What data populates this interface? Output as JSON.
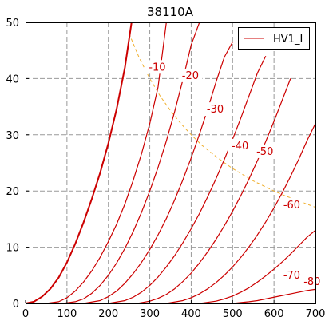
{
  "chart_data": {
    "type": "line",
    "title": "38110A",
    "xlim": [
      0,
      700
    ],
    "ylim": [
      0,
      50
    ],
    "x_ticks": [
      "0",
      "100",
      "200",
      "300",
      "400",
      "500",
      "600",
      "700"
    ],
    "y_ticks": [
      "0",
      "10",
      "20",
      "30",
      "40",
      "50"
    ],
    "grid": true,
    "legend": {
      "position": "top-right",
      "entries": [
        "HV1_I"
      ]
    },
    "colors": {
      "curve": "#cc0000",
      "dissipation": "#f0b030",
      "grid": "#999999"
    },
    "series": [
      {
        "name": "HV1_I",
        "label": "",
        "bold": true,
        "x": [
          0,
          20,
          40,
          60,
          80,
          100,
          120,
          140,
          160,
          180,
          200,
          220,
          240,
          256
        ],
        "y": [
          0,
          0.3,
          1.2,
          2.6,
          4.6,
          7.3,
          10.6,
          14.4,
          18.6,
          23.2,
          28.5,
          34.6,
          42.0,
          50.0
        ]
      },
      {
        "label": "-10",
        "x": [
          50,
          80,
          100,
          120,
          140,
          160,
          180,
          200,
          220,
          240,
          260,
          280,
          300,
          320,
          340
        ],
        "y": [
          0,
          0.3,
          1.0,
          2.2,
          3.8,
          5.8,
          8.2,
          11.0,
          14.1,
          17.7,
          21.9,
          26.6,
          32.0,
          38.5,
          50.0
        ]
      },
      {
        "label": "-20",
        "x": [
          90,
          120,
          140,
          160,
          180,
          200,
          220,
          240,
          260,
          280,
          300,
          320,
          340,
          360,
          380,
          400,
          420
        ],
        "y": [
          0,
          0.3,
          0.8,
          1.8,
          3.2,
          5.0,
          7.2,
          9.8,
          12.8,
          16.2,
          20.0,
          24.2,
          28.9,
          34.1,
          39.8,
          46.0,
          50.0
        ]
      },
      {
        "label": "-30",
        "x": [
          140,
          180,
          200,
          220,
          240,
          260,
          280,
          300,
          320,
          340,
          360,
          380,
          400,
          420,
          440,
          460,
          480,
          500
        ],
        "y": [
          0,
          0.5,
          1.2,
          2.2,
          3.6,
          5.3,
          7.3,
          9.6,
          12.2,
          15.1,
          18.4,
          22.0,
          25.9,
          30.1,
          34.6,
          39.4,
          43.8,
          46.5
        ]
      },
      {
        "label": "-40",
        "x": [
          200,
          240,
          260,
          280,
          300,
          320,
          340,
          360,
          380,
          400,
          420,
          440,
          460,
          480,
          500,
          520,
          540,
          560,
          580
        ],
        "y": [
          0,
          0.5,
          1.1,
          2.0,
          3.2,
          4.7,
          6.5,
          8.5,
          10.8,
          13.3,
          16.0,
          19.0,
          22.2,
          25.6,
          29.2,
          33.0,
          37.0,
          41.0,
          44.0
        ]
      },
      {
        "label": "-50",
        "x": [
          270,
          300,
          320,
          340,
          360,
          380,
          400,
          420,
          440,
          460,
          480,
          500,
          520,
          540,
          560,
          580,
          600,
          620,
          640
        ],
        "y": [
          0,
          0.4,
          0.9,
          1.6,
          2.6,
          3.9,
          5.4,
          7.2,
          9.2,
          11.4,
          13.8,
          16.4,
          19.2,
          22.2,
          25.4,
          28.8,
          32.4,
          36.2,
          40.0
        ]
      },
      {
        "label": "-60",
        "x": [
          340,
          380,
          400,
          420,
          440,
          460,
          480,
          500,
          520,
          540,
          560,
          580,
          600,
          620,
          640,
          660,
          680,
          700
        ],
        "y": [
          0,
          0.5,
          1.0,
          1.7,
          2.6,
          3.7,
          5.0,
          6.5,
          8.2,
          10.1,
          12.2,
          14.5,
          17.0,
          19.7,
          22.6,
          25.7,
          29.0,
          32.0
        ]
      },
      {
        "label": "-70",
        "x": [
          420,
          460,
          480,
          500,
          520,
          540,
          560,
          580,
          600,
          620,
          640,
          660,
          680,
          700
        ],
        "y": [
          0,
          0.4,
          0.8,
          1.3,
          2.0,
          2.8,
          3.8,
          4.9,
          6.1,
          7.4,
          8.8,
          10.3,
          11.8,
          13.0
        ]
      },
      {
        "label": "-80",
        "x": [
          500,
          540,
          560,
          580,
          600,
          620,
          640,
          660,
          680,
          700
        ],
        "y": [
          0,
          0.3,
          0.5,
          0.8,
          1.1,
          1.4,
          1.7,
          2.0,
          2.3,
          2.5
        ]
      }
    ],
    "max_dissipation": {
      "x": [
        250,
        275,
        300,
        325,
        350,
        375,
        400,
        425,
        450,
        475,
        500,
        525,
        550,
        575,
        600,
        625,
        650,
        675,
        700
      ],
      "y": [
        48.0,
        43.6,
        40.0,
        36.9,
        34.3,
        32.0,
        30.0,
        28.2,
        26.7,
        25.3,
        24.0,
        22.9,
        21.8,
        20.9,
        20.0,
        19.2,
        18.5,
        17.8,
        17.1
      ]
    }
  }
}
